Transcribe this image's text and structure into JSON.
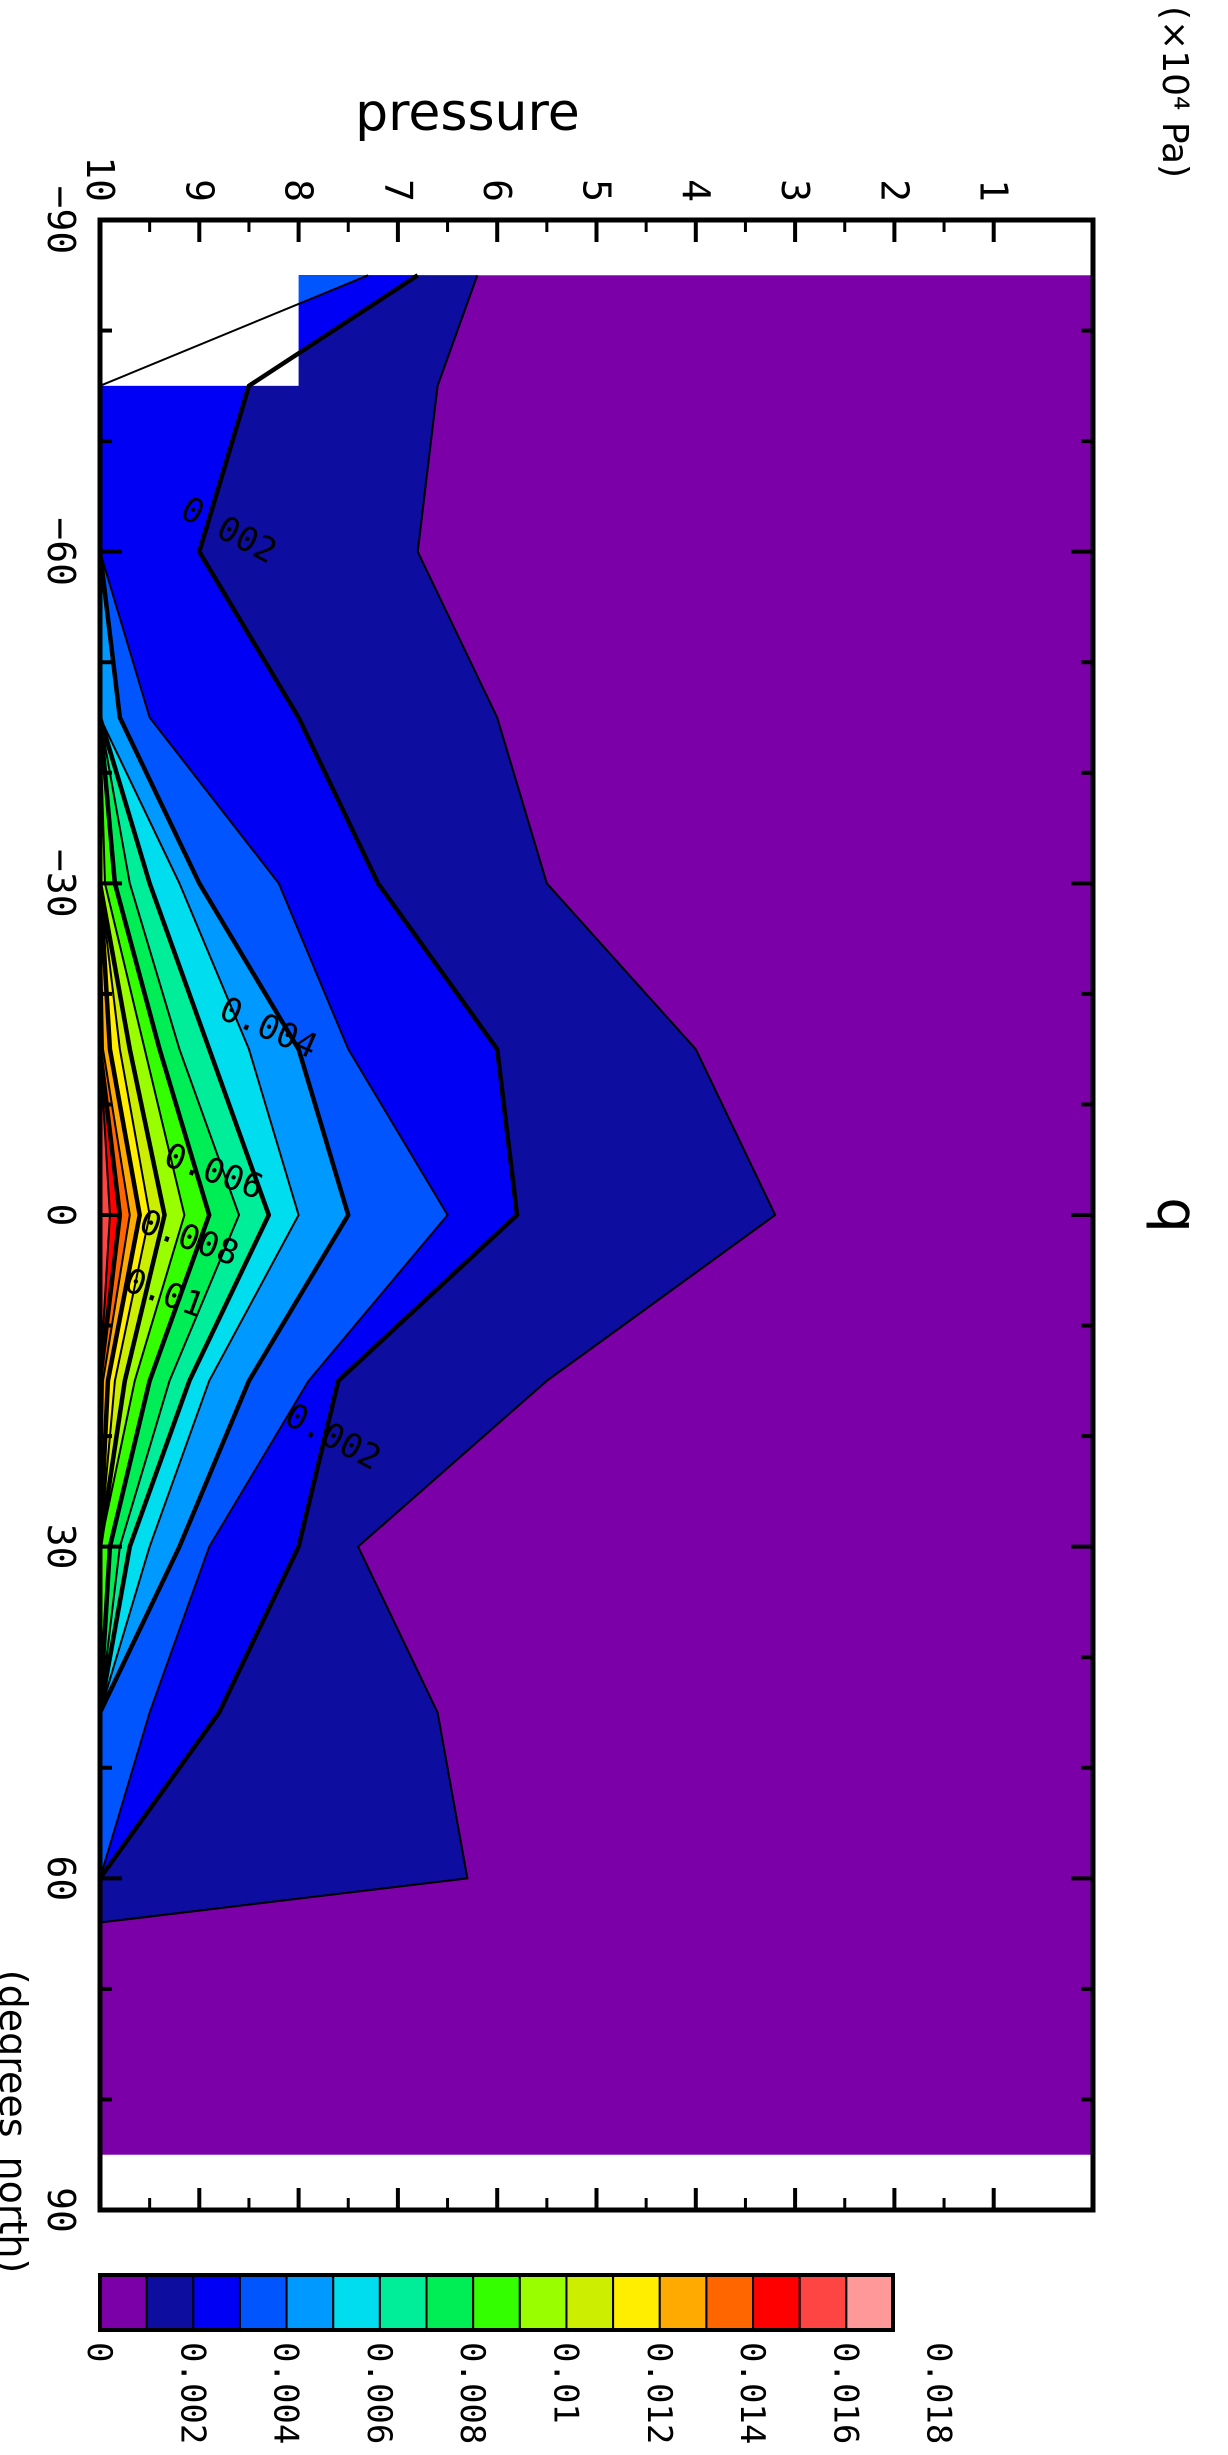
{
  "chart_data": {
    "type": "heatmap",
    "title": "q",
    "xlabel": "pressure",
    "x_units": "(×10⁴ Pa)",
    "ylabel": "",
    "y_units": "(degrees_north)",
    "xlim": [
      0,
      10
    ],
    "ylim": [
      -90,
      90
    ],
    "x_ticks": [
      "1",
      "2",
      "3",
      "4",
      "5",
      "6",
      "7",
      "8",
      "9",
      "10"
    ],
    "y_ticks": [
      "−90",
      "−60",
      "−30",
      "0",
      "30",
      "60",
      "90"
    ],
    "colorbar": {
      "levels": [
        "0",
        "0.002",
        "0.004",
        "0.006",
        "0.008",
        "0.01",
        "0.012",
        "0.014",
        "0.016",
        "0.018"
      ],
      "colors": [
        "#7b00a8",
        "#0d0da0",
        "#0000f5",
        "#0055ff",
        "#0099ff",
        "#00ddee",
        "#00ee99",
        "#00ee55",
        "#33ff00",
        "#99ff00",
        "#ccee00",
        "#ffee00",
        "#ffaa00",
        "#ff6600",
        "#ff0000",
        "#ff4444",
        "#ff9999"
      ]
    },
    "contour_labels": [
      "0.002",
      "0.004",
      "0.006",
      "0.008",
      "0.01",
      "0.002"
    ],
    "lat": [
      -85,
      -75,
      -60,
      -45,
      -30,
      -15,
      0,
      15,
      30,
      45,
      60,
      64
    ],
    "threshold_pressure": [
      {
        "level": "0.001",
        "p": [
          6.2,
          6.6,
          6.8,
          6.0,
          5.5,
          4.0,
          3.2,
          5.5,
          7.4,
          6.6,
          6.3,
          10
        ]
      },
      {
        "level": "0.002",
        "p": [
          6.8,
          8.5,
          9.0,
          8.0,
          7.2,
          6.0,
          5.8,
          7.6,
          8.0,
          8.8,
          10,
          10
        ]
      },
      {
        "level": "0.003",
        "p": [
          7.3,
          10,
          10,
          9.5,
          8.2,
          7.5,
          6.5,
          7.9,
          8.9,
          9.5,
          10,
          10
        ]
      },
      {
        "level": "0.004",
        "p": [
          10,
          10,
          10,
          9.8,
          9.0,
          8.0,
          7.5,
          8.5,
          9.2,
          10,
          10,
          10
        ]
      },
      {
        "level": "0.005",
        "p": [
          10,
          10,
          10,
          10,
          9.2,
          8.5,
          8.0,
          8.9,
          9.5,
          10,
          10,
          10
        ]
      },
      {
        "level": "0.006",
        "p": [
          10,
          10,
          10,
          10,
          9.5,
          8.9,
          8.3,
          9.1,
          9.7,
          10,
          10,
          10
        ]
      },
      {
        "level": "0.007",
        "p": [
          10,
          10,
          10,
          10,
          9.7,
          9.2,
          8.6,
          9.3,
          9.8,
          10,
          10,
          10
        ]
      },
      {
        "level": "0.008",
        "p": [
          10,
          10,
          10,
          10,
          9.85,
          9.4,
          8.9,
          9.5,
          9.9,
          10,
          10,
          10
        ]
      },
      {
        "level": "0.009",
        "p": [
          10,
          10,
          10,
          10,
          9.95,
          9.55,
          9.15,
          9.65,
          10,
          10,
          10,
          10
        ]
      },
      {
        "level": "0.010",
        "p": [
          10,
          10,
          10,
          10,
          10,
          9.7,
          9.35,
          9.75,
          10,
          10,
          10,
          10
        ]
      },
      {
        "level": "0.011",
        "p": [
          10,
          10,
          10,
          10,
          10,
          9.8,
          9.5,
          9.85,
          10,
          10,
          10,
          10
        ]
      },
      {
        "level": "0.012",
        "p": [
          10,
          10,
          10,
          10,
          10,
          9.9,
          9.6,
          9.92,
          10,
          10,
          10,
          10
        ]
      },
      {
        "level": "0.013",
        "p": [
          10,
          10,
          10,
          10,
          10,
          9.97,
          9.7,
          9.97,
          10,
          10,
          10,
          10
        ]
      },
      {
        "level": "0.014",
        "p": [
          10,
          10,
          10,
          10,
          10,
          10,
          9.8,
          10,
          10,
          10,
          10,
          10
        ]
      },
      {
        "level": "0.015",
        "p": [
          10,
          10,
          10,
          10,
          10,
          10,
          9.9,
          10,
          10,
          10,
          10,
          10
        ]
      }
    ],
    "missing_region": {
      "lat": [
        -90,
        -75
      ],
      "p": [
        8,
        10
      ]
    }
  }
}
